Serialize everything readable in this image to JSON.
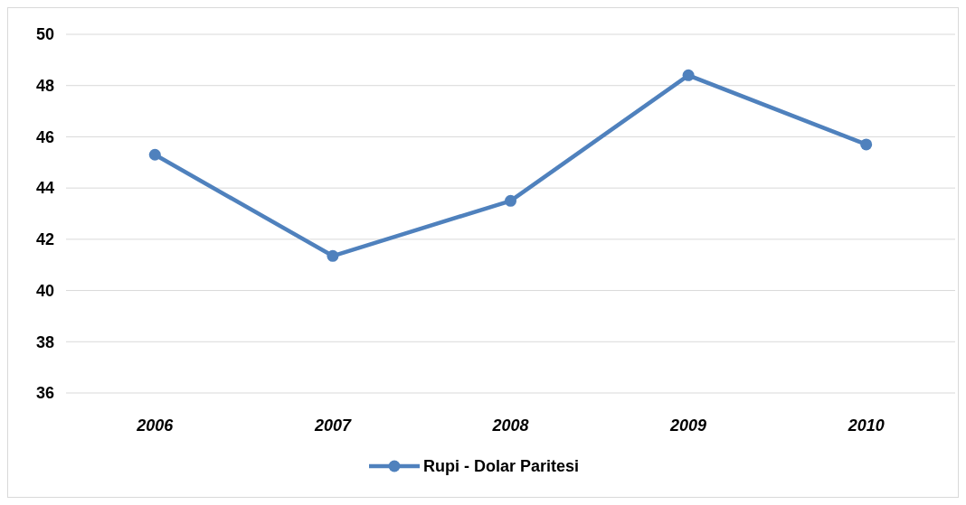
{
  "chart_data": {
    "type": "line",
    "categories": [
      "2006",
      "2007",
      "2008",
      "2009",
      "2010"
    ],
    "series": [
      {
        "name": "Rupi - Dolar Paritesi",
        "color": "#4f81bd",
        "values": [
          45.3,
          41.35,
          43.5,
          48.4,
          45.7
        ]
      }
    ],
    "ylim": [
      36,
      50
    ],
    "yticks": [
      36,
      38,
      40,
      42,
      44,
      46,
      48,
      50
    ],
    "grid": "y",
    "legend": "bottom",
    "marker": "circle",
    "line_style": "solid"
  }
}
